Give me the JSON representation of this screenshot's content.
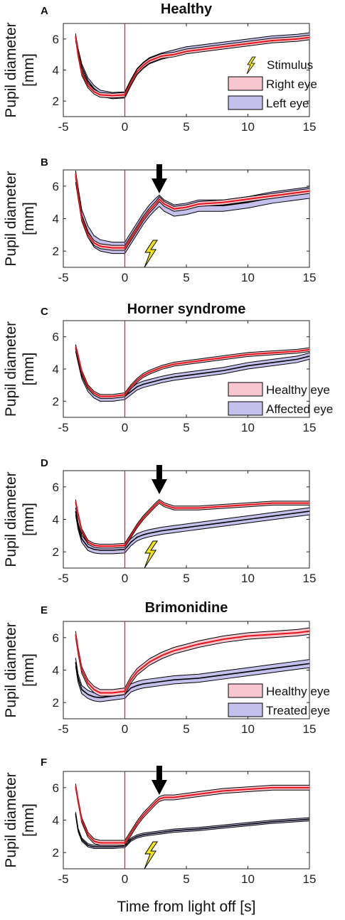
{
  "figure": {
    "x_axis_label": "Time from light off [s]",
    "y_label_line1": "Pupil diameter",
    "y_label_line2": "[mm]"
  },
  "colors": {
    "red_line": "#e8131a",
    "red_fill": "#f8c6cf",
    "blue_fill": "#c3c0ec",
    "black_line": "#000000",
    "stimulus_marker": "#e8131a",
    "bolt": "#f5e50f",
    "arrow": "#000000"
  },
  "chart_data": [
    {
      "type": "line",
      "panel": "A",
      "title": "Healthy",
      "xlim": [
        -5,
        15
      ],
      "ylim": [
        1,
        7
      ],
      "xticks": [
        -5,
        0,
        5,
        10,
        15
      ],
      "yticks": [
        2,
        4,
        6
      ],
      "stimulus_x": 0,
      "legend": [
        "Stimulus",
        "Right eye",
        "Left eye"
      ],
      "legend_position": "bottom-right",
      "series": [
        {
          "name": "Right eye",
          "color": "red",
          "x": [
            -4,
            -3.8,
            -3.5,
            -3,
            -2.5,
            -2,
            -1,
            0,
            0.5,
            1,
            1.5,
            2,
            3,
            4,
            5,
            6,
            8,
            10,
            12,
            14,
            15
          ],
          "y": [
            6.2,
            5.0,
            3.8,
            3.0,
            2.6,
            2.4,
            2.35,
            2.4,
            3.2,
            3.9,
            4.3,
            4.6,
            4.9,
            5.0,
            5.2,
            5.3,
            5.5,
            5.7,
            5.9,
            6.0,
            6.1
          ],
          "band": 0.15
        },
        {
          "name": "Left eye",
          "color": "blue",
          "x": [
            -4,
            -3.8,
            -3.5,
            -3,
            -2.5,
            -2,
            -1,
            0,
            0.5,
            1,
            1.5,
            2,
            3,
            4,
            5,
            6,
            8,
            10,
            12,
            14,
            15
          ],
          "y": [
            6.1,
            5.2,
            4.2,
            3.3,
            2.8,
            2.5,
            2.35,
            2.4,
            3.2,
            3.9,
            4.3,
            4.6,
            4.9,
            5.1,
            5.3,
            5.4,
            5.6,
            5.8,
            6.0,
            6.1,
            6.2
          ],
          "band": 0.2
        }
      ]
    },
    {
      "type": "line",
      "panel": "B",
      "title": "",
      "xlim": [
        -5,
        15
      ],
      "ylim": [
        1,
        7
      ],
      "xticks": [
        -5,
        0,
        5,
        10,
        15
      ],
      "yticks": [
        2,
        4,
        6
      ],
      "stimulus_x": 0,
      "arrow_x": 2.8,
      "bolt_x": 2.0,
      "series": [
        {
          "name": "Right eye",
          "color": "red",
          "x": [
            -4,
            -3.8,
            -3.5,
            -3,
            -2.5,
            -2,
            -1,
            0,
            0.5,
            1,
            1.5,
            2,
            2.5,
            2.8,
            3.2,
            4,
            5,
            6,
            8,
            10,
            12,
            14,
            15
          ],
          "y": [
            6.8,
            5.5,
            4.0,
            3.0,
            2.5,
            2.3,
            2.2,
            2.2,
            2.8,
            3.4,
            4.0,
            4.5,
            4.9,
            5.2,
            4.9,
            4.6,
            4.7,
            4.9,
            5.0,
            5.2,
            5.4,
            5.6,
            5.7
          ],
          "band": 0.15
        },
        {
          "name": "Left eye",
          "color": "blue",
          "x": [
            -4,
            -3.8,
            -3.5,
            -3,
            -2.5,
            -2,
            -1,
            0,
            0.5,
            1,
            1.5,
            2,
            2.5,
            2.8,
            3.2,
            4,
            5,
            6,
            8,
            10,
            12,
            14,
            15
          ],
          "y": [
            6.6,
            5.6,
            4.2,
            3.2,
            2.6,
            2.35,
            2.2,
            2.2,
            2.8,
            3.4,
            4.0,
            4.5,
            4.9,
            5.1,
            4.8,
            4.5,
            4.6,
            4.8,
            4.8,
            5.0,
            5.3,
            5.5,
            5.6
          ],
          "band": 0.35
        }
      ]
    },
    {
      "type": "line",
      "panel": "C",
      "title": "Horner syndrome",
      "xlim": [
        -5,
        15
      ],
      "ylim": [
        1,
        7
      ],
      "xticks": [
        -5,
        0,
        5,
        10,
        15
      ],
      "yticks": [
        2,
        4,
        6
      ],
      "stimulus_x": 0,
      "legend": [
        "Healthy eye",
        "Affected eye"
      ],
      "legend_position": "bottom-right",
      "series": [
        {
          "name": "Healthy eye",
          "color": "red",
          "x": [
            -4,
            -3.8,
            -3.5,
            -3,
            -2.5,
            -2,
            -1,
            0,
            0.5,
            1,
            1.5,
            2,
            3,
            4,
            5,
            6,
            8,
            10,
            12,
            14,
            15
          ],
          "y": [
            5.4,
            4.8,
            3.8,
            2.9,
            2.5,
            2.3,
            2.3,
            2.4,
            2.9,
            3.3,
            3.6,
            3.8,
            4.1,
            4.3,
            4.4,
            4.5,
            4.7,
            4.9,
            5.0,
            5.1,
            5.2
          ],
          "band": 0.12
        },
        {
          "name": "Affected eye",
          "color": "blue",
          "x": [
            -4,
            -3.8,
            -3.5,
            -3,
            -2.5,
            -2,
            -1,
            0,
            0.5,
            1,
            1.5,
            2,
            3,
            4,
            5,
            6,
            8,
            10,
            12,
            14,
            15
          ],
          "y": [
            5.3,
            4.6,
            3.6,
            2.8,
            2.4,
            2.2,
            2.2,
            2.3,
            2.6,
            2.9,
            3.05,
            3.15,
            3.35,
            3.5,
            3.6,
            3.7,
            3.9,
            4.2,
            4.4,
            4.6,
            4.8
          ],
          "band": 0.2
        }
      ]
    },
    {
      "type": "line",
      "panel": "D",
      "title": "",
      "xlim": [
        -5,
        15
      ],
      "ylim": [
        1,
        7
      ],
      "xticks": [
        -5,
        0,
        5,
        10,
        15
      ],
      "yticks": [
        2,
        4,
        6
      ],
      "stimulus_x": 0,
      "arrow_x": 2.8,
      "bolt_x": 2.0,
      "series": [
        {
          "name": "Healthy eye",
          "color": "red",
          "x": [
            -4,
            -3.8,
            -3.5,
            -3,
            -2.5,
            -2,
            -1,
            0,
            0.5,
            1,
            1.5,
            2,
            2.5,
            2.8,
            3.2,
            4,
            5,
            6,
            8,
            10,
            12,
            14,
            15
          ],
          "y": [
            5.1,
            4.3,
            3.3,
            2.6,
            2.4,
            2.35,
            2.35,
            2.4,
            3.0,
            3.6,
            4.1,
            4.5,
            4.9,
            5.1,
            4.9,
            4.7,
            4.7,
            4.7,
            4.8,
            4.9,
            5.0,
            5.0,
            5.0
          ],
          "band": 0.12
        },
        {
          "name": "Affected eye",
          "color": "blue",
          "x": [
            -4,
            -3.8,
            -3.5,
            -3,
            -2.5,
            -2,
            -1,
            0,
            0.5,
            1,
            1.5,
            2,
            3,
            4,
            5,
            6,
            8,
            10,
            12,
            14,
            15
          ],
          "y": [
            4.5,
            3.6,
            2.8,
            2.3,
            2.15,
            2.1,
            2.1,
            2.15,
            2.6,
            2.9,
            3.05,
            3.15,
            3.3,
            3.4,
            3.5,
            3.6,
            3.8,
            4.0,
            4.2,
            4.4,
            4.5
          ],
          "band": 0.22
        }
      ]
    },
    {
      "type": "line",
      "panel": "E",
      "title": "Brimonidine",
      "xlim": [
        -5,
        15
      ],
      "ylim": [
        1,
        7
      ],
      "xticks": [
        -5,
        0,
        5,
        10,
        15
      ],
      "yticks": [
        2,
        4,
        6
      ],
      "stimulus_x": 0,
      "legend": [
        "Healthy eye",
        "Treated eye"
      ],
      "legend_position": "bottom-right",
      "series": [
        {
          "name": "Healthy eye",
          "color": "red",
          "x": [
            -4,
            -3.8,
            -3.5,
            -3,
            -2.5,
            -2,
            -1,
            0,
            0.5,
            1,
            1.5,
            2,
            3,
            4,
            5,
            6,
            8,
            10,
            12,
            14,
            15
          ],
          "y": [
            6.2,
            5.2,
            4.0,
            3.2,
            2.8,
            2.6,
            2.6,
            2.7,
            3.4,
            3.9,
            4.2,
            4.5,
            4.9,
            5.2,
            5.4,
            5.6,
            5.9,
            6.1,
            6.2,
            6.3,
            6.4
          ],
          "band": 0.2
        },
        {
          "name": "Treated eye",
          "color": "blue",
          "x": [
            -4,
            -3.8,
            -3.5,
            -3,
            -2.5,
            -2,
            -1,
            0,
            0.5,
            1,
            1.5,
            2,
            3,
            4,
            5,
            6,
            8,
            10,
            12,
            14,
            15
          ],
          "y": [
            4.5,
            3.5,
            2.8,
            2.5,
            2.35,
            2.3,
            2.4,
            2.5,
            2.9,
            3.05,
            3.15,
            3.2,
            3.3,
            3.4,
            3.45,
            3.5,
            3.7,
            3.9,
            4.1,
            4.3,
            4.4
          ],
          "band": 0.25
        }
      ]
    },
    {
      "type": "line",
      "panel": "F",
      "title": "",
      "xlim": [
        -5,
        15
      ],
      "ylim": [
        1,
        7
      ],
      "xticks": [
        -5,
        0,
        5,
        10,
        15
      ],
      "yticks": [
        2,
        4,
        6
      ],
      "stimulus_x": 0,
      "arrow_x": 2.8,
      "bolt_x": 2.0,
      "series": [
        {
          "name": "Healthy eye",
          "color": "red",
          "x": [
            -4,
            -3.8,
            -3.5,
            -3,
            -2.5,
            -2,
            -1,
            0,
            0.5,
            1,
            1.5,
            2,
            2.5,
            2.8,
            3.2,
            4,
            5,
            6,
            8,
            10,
            12,
            14,
            15
          ],
          "y": [
            6.1,
            5.2,
            4.0,
            3.1,
            2.7,
            2.6,
            2.6,
            2.6,
            3.2,
            3.8,
            4.3,
            4.7,
            5.1,
            5.3,
            5.4,
            5.4,
            5.5,
            5.6,
            5.8,
            5.9,
            6.0,
            6.0,
            6.0
          ],
          "band": 0.15
        },
        {
          "name": "Treated eye",
          "color": "blue",
          "x": [
            -4,
            -3.8,
            -3.5,
            -3,
            -2.5,
            -2,
            -1,
            0,
            0.5,
            1,
            1.5,
            2,
            3,
            4,
            5,
            6,
            8,
            10,
            12,
            14,
            15
          ],
          "y": [
            4.4,
            3.4,
            2.8,
            2.45,
            2.35,
            2.35,
            2.35,
            2.4,
            2.8,
            3.0,
            3.1,
            3.15,
            3.25,
            3.35,
            3.4,
            3.45,
            3.6,
            3.75,
            3.9,
            4.0,
            4.05
          ],
          "band": 0.1
        }
      ]
    }
  ]
}
